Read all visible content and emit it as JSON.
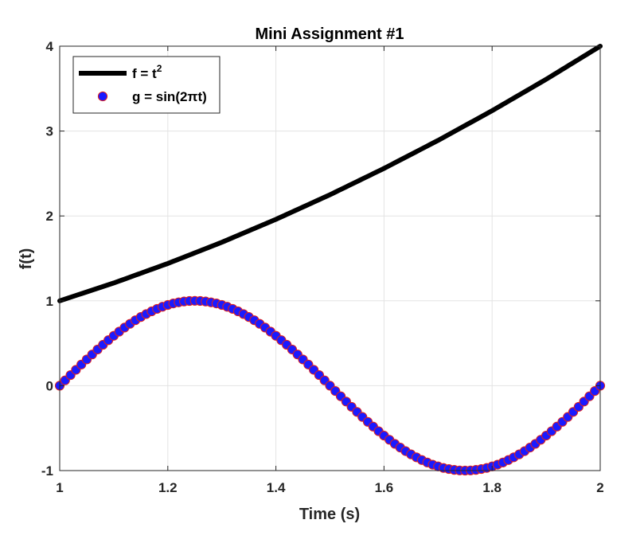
{
  "chart_data": {
    "type": "line",
    "title": "Mini Assignment #1",
    "xlabel": "Time (s)",
    "ylabel": "f(t)",
    "xlim": [
      1,
      2
    ],
    "ylim": [
      -1,
      4
    ],
    "grid": true,
    "legend_location": "top-left",
    "x_ticks": [
      1,
      1.2,
      1.4,
      1.6,
      1.8,
      2
    ],
    "x_tick_labels": [
      "1",
      "1.2",
      "1.4",
      "1.6",
      "1.8",
      "2"
    ],
    "y_ticks": [
      -1,
      0,
      1,
      2,
      3,
      4
    ],
    "y_tick_labels": [
      "-1",
      "0",
      "1",
      "2",
      "3",
      "4"
    ],
    "series": [
      {
        "name": "f = t²",
        "legend_base": "f = t",
        "legend_superscript": "2",
        "style": "line",
        "color": "#000000",
        "x": [
          1,
          1.1,
          1.2,
          1.3,
          1.4,
          1.5,
          1.6,
          1.7,
          1.8,
          1.9,
          2
        ],
        "y": [
          1,
          1.21,
          1.44,
          1.69,
          1.96,
          2.25,
          2.56,
          2.89,
          3.24,
          3.61,
          4
        ]
      },
      {
        "name": "g = sin(2πt)",
        "style": "markers",
        "marker_face_color": "#1a1aff",
        "marker_edge_color": "#e0201c",
        "x": [
          1,
          1.01,
          1.02,
          1.03,
          1.04,
          1.05,
          1.06,
          1.07,
          1.08,
          1.09,
          1.1,
          1.11,
          1.12,
          1.13,
          1.14,
          1.15,
          1.16,
          1.17,
          1.18,
          1.19,
          1.2,
          1.21,
          1.22,
          1.23,
          1.24,
          1.25,
          1.26,
          1.27,
          1.28,
          1.29,
          1.3,
          1.31,
          1.32,
          1.33,
          1.34,
          1.35,
          1.36,
          1.37,
          1.38,
          1.39,
          1.4,
          1.41,
          1.42,
          1.43,
          1.44,
          1.45,
          1.46,
          1.47,
          1.48,
          1.49,
          1.5,
          1.51,
          1.52,
          1.53,
          1.54,
          1.55,
          1.56,
          1.57,
          1.58,
          1.59,
          1.6,
          1.61,
          1.62,
          1.63,
          1.64,
          1.65,
          1.66,
          1.67,
          1.68,
          1.69,
          1.7,
          1.71,
          1.72,
          1.73,
          1.74,
          1.75,
          1.76,
          1.77,
          1.78,
          1.79,
          1.8,
          1.81,
          1.82,
          1.83,
          1.84,
          1.85,
          1.86,
          1.87,
          1.88,
          1.89,
          1.9,
          1.91,
          1.92,
          1.93,
          1.94,
          1.95,
          1.96,
          1.97,
          1.98,
          1.99,
          2
        ],
        "y": [
          0,
          0.063,
          0.125,
          0.187,
          0.249,
          0.309,
          0.368,
          0.426,
          0.482,
          0.536,
          0.588,
          0.637,
          0.685,
          0.729,
          0.771,
          0.809,
          0.844,
          0.876,
          0.905,
          0.93,
          0.951,
          0.969,
          0.982,
          0.992,
          0.998,
          1,
          0.998,
          0.992,
          0.982,
          0.969,
          0.951,
          0.93,
          0.905,
          0.876,
          0.844,
          0.809,
          0.771,
          0.729,
          0.685,
          0.637,
          0.588,
          0.536,
          0.482,
          0.426,
          0.368,
          0.309,
          0.249,
          0.187,
          0.125,
          0.063,
          0,
          -0.063,
          -0.125,
          -0.187,
          -0.249,
          -0.309,
          -0.368,
          -0.426,
          -0.482,
          -0.536,
          -0.588,
          -0.637,
          -0.685,
          -0.729,
          -0.771,
          -0.809,
          -0.844,
          -0.876,
          -0.905,
          -0.93,
          -0.951,
          -0.969,
          -0.982,
          -0.992,
          -0.998,
          -1,
          -0.998,
          -0.992,
          -0.982,
          -0.969,
          -0.951,
          -0.93,
          -0.905,
          -0.876,
          -0.844,
          -0.809,
          -0.771,
          -0.729,
          -0.685,
          -0.637,
          -0.588,
          -0.536,
          -0.482,
          -0.426,
          -0.368,
          -0.309,
          -0.249,
          -0.187,
          -0.125,
          -0.063,
          0
        ]
      }
    ]
  }
}
